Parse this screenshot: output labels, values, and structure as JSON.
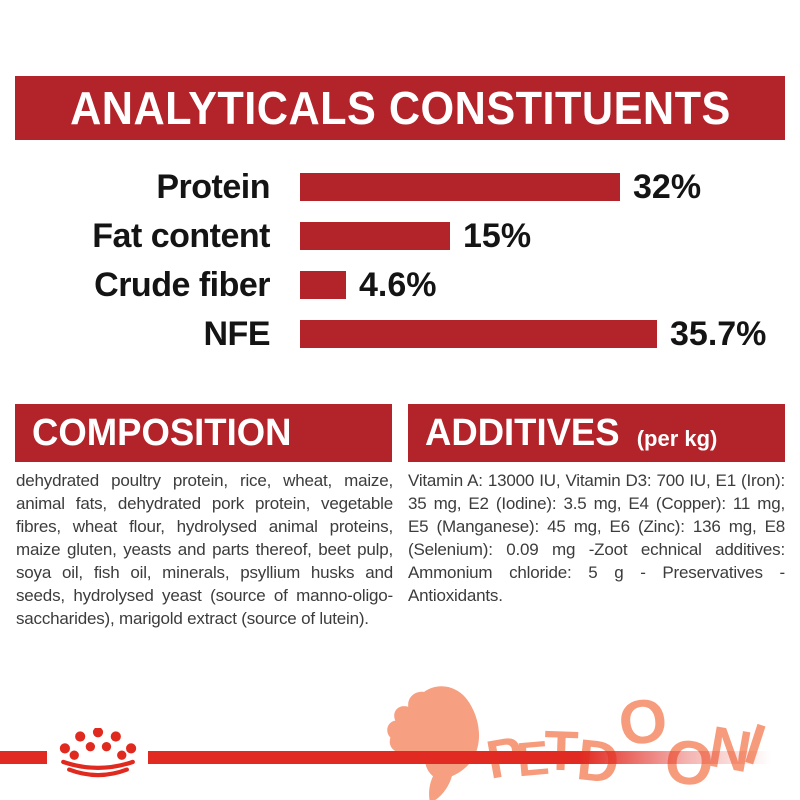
{
  "colors": {
    "banner_red": "#B2232A",
    "bar_red": "#B2232A",
    "line_red": "#E12B22",
    "crown_red": "#E02A1F",
    "logo_salmon": "#F69B7B",
    "body_text": "#3C3C3C",
    "label_black": "#141414",
    "white": "#FFFFFF"
  },
  "header": {
    "title": "ANALYTICALS CONSTITUENTS"
  },
  "chart_data": {
    "type": "bar",
    "orientation": "horizontal",
    "title": "ANALYTICALS CONSTITUENTS",
    "categories": [
      "Protein",
      "Fat content",
      "Crude fiber",
      "NFE"
    ],
    "values": [
      32,
      15,
      4.6,
      35.7
    ],
    "value_labels": [
      "32%",
      "15%",
      "4.6%",
      "35.7%"
    ],
    "unit": "%",
    "xlim": [
      0,
      40
    ],
    "bar_color": "#B2232A",
    "grid": false,
    "legend": false
  },
  "composition": {
    "title": "COMPOSITION",
    "body": "dehydrated poultry protein, rice, wheat, maize, animal fats, dehydrated pork protein, vegetable fibres, wheat flour, hydrolysed animal proteins, maize gluten, yeasts and parts thereof, beet pulp, soya oil, fish oil, minerals, psyllium husks and seeds, hydrolysed yeast (source of manno-oligo-saccharides), marigold extract (source of lutein)."
  },
  "additives": {
    "title": "ADDITIVES",
    "subtitle": "(per kg)",
    "body": "Vitamin A: 13000 IU, Vitamin D3: 700 IU, E1 (Iron): 35 mg, E2 (Iodine): 3.5 mg, E4 (Copper): 11 mg, E5 (Manganese): 45 mg, E6 (Zinc): 136 mg, E8 (Selenium): 0.09 mg -Zoot echnical additives: Ammonium chloride: 5 g - Preservatives - Antioxidants."
  },
  "footer": {
    "brand": "PETDOONI",
    "letters": [
      "P",
      "E",
      "T",
      "D",
      "O",
      "O",
      "N",
      "I"
    ],
    "icons": [
      "royal-canin-crown-icon",
      "dog-head-icon"
    ]
  }
}
